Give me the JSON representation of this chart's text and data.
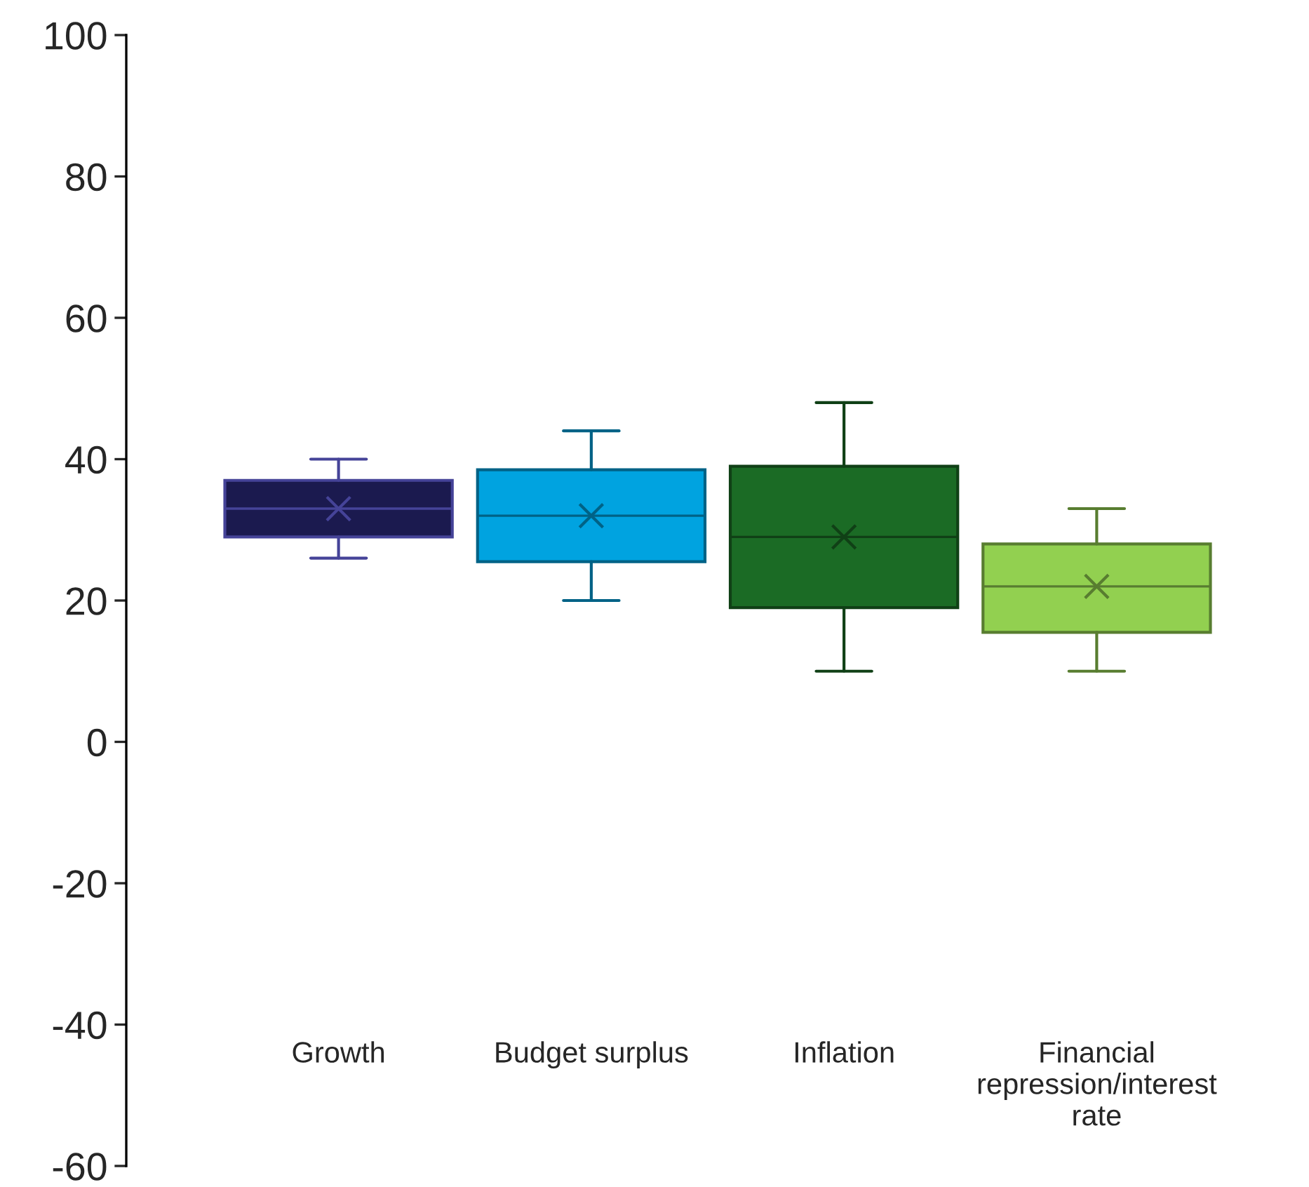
{
  "chart_data": {
    "type": "box",
    "categories": [
      "Growth",
      "Budget surplus",
      "Inflation",
      "Financial\nrepression/interest\nrate"
    ],
    "series": [
      {
        "color": "#1b1a4f",
        "boxes": [
          {
            "low": 26,
            "q1": 29,
            "median": 33,
            "q3": 37,
            "high": 40,
            "mean": 33
          },
          null,
          null,
          null
        ]
      },
      {
        "color": "#00a3e0",
        "boxes": [
          null,
          {
            "low": 20,
            "q1": 25.5,
            "median": 32,
            "q3": 38.5,
            "high": 44,
            "mean": 32
          },
          null,
          null
        ]
      },
      {
        "color": "#1b6b25",
        "boxes": [
          null,
          null,
          {
            "low": 10,
            "q1": 19,
            "median": 29,
            "q3": 39,
            "high": 48,
            "mean": 29
          },
          null
        ]
      },
      {
        "color": "#92d050",
        "boxes": [
          null,
          null,
          null,
          {
            "low": 10,
            "q1": 15.5,
            "median": 22,
            "q3": 28,
            "high": 33,
            "mean": 22
          }
        ]
      }
    ],
    "ylim": [
      -60,
      100
    ],
    "yticks": [
      -60,
      -40,
      -20,
      0,
      20,
      40,
      60,
      80,
      100
    ],
    "grid": false,
    "legend": false
  }
}
